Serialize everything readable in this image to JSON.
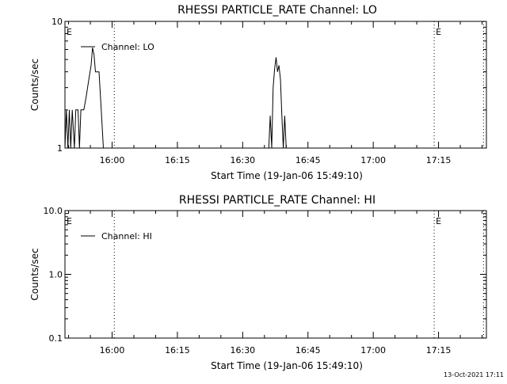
{
  "footer_timestamp": "13-Oct-2021 17:11",
  "chart_data": [
    {
      "type": "line",
      "title": "RHESSI PARTICLE_RATE Channel: LO",
      "xlabel": "Start Time (19-Jan-06 15:49:10)",
      "ylabel": "Counts/sec",
      "yscale": "log",
      "ylim": [
        1,
        10
      ],
      "xlim": [
        "15:49:10",
        "17:26:00"
      ],
      "x_ticks": [
        "16:00",
        "16:15",
        "16:30",
        "16:45",
        "17:00",
        "17:15"
      ],
      "y_ticks": [
        {
          "value": 1,
          "label": "1"
        },
        {
          "value": 10,
          "label": "10"
        }
      ],
      "legend": {
        "text": "Channel: LO",
        "placement": "top-left"
      },
      "markers": [
        {
          "label": "E",
          "time": "15:49:10"
        },
        {
          "label": "E",
          "time": "17:14:00"
        }
      ],
      "vlines": [
        "16:00:30",
        "17:14:00",
        "17:25:20"
      ],
      "series": [
        {
          "name": "Channel: LO",
          "segments": [
            [
              [
                "15:49:10",
                1
              ],
              [
                "15:49:30",
                2
              ],
              [
                "15:49:50",
                1
              ],
              [
                "15:50:10",
                2
              ],
              [
                "15:50:30",
                1
              ],
              [
                "15:50:50",
                2
              ],
              [
                "15:51:20",
                1
              ],
              [
                "15:51:40",
                2
              ],
              [
                "15:52:10",
                2
              ],
              [
                "15:52:30",
                1
              ],
              [
                "15:52:50",
                2
              ],
              [
                "15:53:30",
                2
              ],
              [
                "15:54:00",
                2.5
              ],
              [
                "15:54:40",
                3.5
              ],
              [
                "15:55:10",
                4.5
              ],
              [
                "15:55:30",
                6.2
              ],
              [
                "15:55:50",
                5.5
              ],
              [
                "15:56:10",
                4
              ],
              [
                "15:57:00",
                4
              ],
              [
                "15:57:30",
                2
              ],
              [
                "15:58:00",
                1
              ]
            ],
            [
              [
                "16:36:00",
                1
              ],
              [
                "16:36:20",
                1.8
              ],
              [
                "16:36:40",
                1
              ],
              [
                "16:37:00",
                3
              ],
              [
                "16:37:20",
                4.2
              ],
              [
                "16:37:40",
                5.2
              ],
              [
                "16:38:00",
                4
              ],
              [
                "16:38:20",
                4.5
              ],
              [
                "16:38:40",
                3.5
              ],
              [
                "16:39:00",
                1.8
              ],
              [
                "16:39:20",
                1
              ],
              [
                "16:39:40",
                1.8
              ],
              [
                "16:40:00",
                1
              ]
            ]
          ]
        }
      ]
    },
    {
      "type": "line",
      "title": "RHESSI PARTICLE_RATE Channel: HI",
      "xlabel": "Start Time (19-Jan-06 15:49:10)",
      "ylabel": "Counts/sec",
      "yscale": "log",
      "ylim": [
        0.1,
        10
      ],
      "xlim": [
        "15:49:10",
        "17:26:00"
      ],
      "x_ticks": [
        "16:00",
        "16:15",
        "16:30",
        "16:45",
        "17:00",
        "17:15"
      ],
      "y_ticks": [
        {
          "value": 0.1,
          "label": "0.1"
        },
        {
          "value": 1,
          "label": "1.0"
        },
        {
          "value": 10,
          "label": "10.0"
        }
      ],
      "legend": {
        "text": "Channel: HI",
        "placement": "top-left"
      },
      "markers": [
        {
          "label": "E",
          "time": "15:49:10"
        },
        {
          "label": "E",
          "time": "17:14:00"
        }
      ],
      "vlines": [
        "16:00:30",
        "17:14:00",
        "17:25:20"
      ],
      "series": [
        {
          "name": "Channel: HI",
          "segments": []
        }
      ]
    }
  ]
}
